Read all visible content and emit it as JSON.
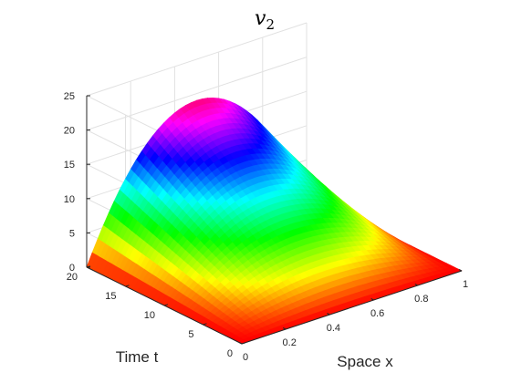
{
  "chart_data": {
    "type": "surface",
    "title": {
      "base": "v",
      "subscript": "2"
    },
    "xlabel": "Space x",
    "ylabel": "Time t",
    "zlabel": "",
    "xlim": [
      0,
      1
    ],
    "ylim": [
      0,
      20
    ],
    "zlim": [
      0,
      25
    ],
    "x_ticks": [
      "0",
      "0.2",
      "0.4",
      "0.6",
      "0.8",
      "1"
    ],
    "y_ticks": [
      "0",
      "5",
      "10",
      "15",
      "20"
    ],
    "z_ticks": [
      "0",
      "5",
      "10",
      "15",
      "20",
      "25"
    ],
    "grid": true,
    "colormap": "hsv",
    "surface": {
      "function": "v2(x,t) = 0.95 * t * 4 * x * (1 - x)",
      "peak_value_at_x_0_5_t_20": 19,
      "samples": [
        {
          "t": 0,
          "x": [
            0,
            0.25,
            0.5,
            0.75,
            1
          ],
          "v": [
            0,
            0,
            0,
            0,
            0
          ]
        },
        {
          "t": 5,
          "x": [
            0,
            0.25,
            0.5,
            0.75,
            1
          ],
          "v": [
            0,
            3.56,
            4.75,
            3.56,
            0
          ]
        },
        {
          "t": 10,
          "x": [
            0,
            0.25,
            0.5,
            0.75,
            1
          ],
          "v": [
            0,
            7.13,
            9.5,
            7.13,
            0
          ]
        },
        {
          "t": 15,
          "x": [
            0,
            0.25,
            0.5,
            0.75,
            1
          ],
          "v": [
            0,
            10.69,
            14.25,
            10.69,
            0
          ]
        },
        {
          "t": 20,
          "x": [
            0,
            0.25,
            0.5,
            0.75,
            1
          ],
          "v": [
            0,
            14.25,
            19,
            14.25,
            0
          ]
        }
      ]
    }
  }
}
